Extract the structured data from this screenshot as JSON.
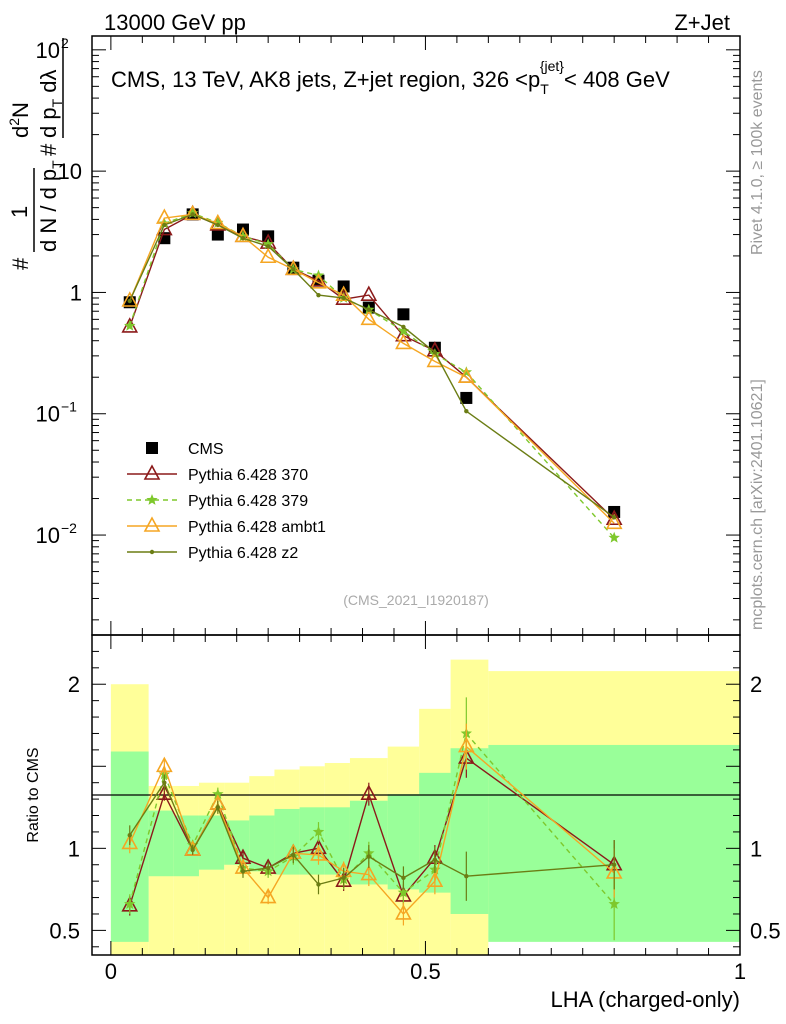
{
  "header": {
    "left": "13000 GeV pp",
    "right": "Z+Jet"
  },
  "side_labels": {
    "rivet": "Rivet 4.1.0, ≥ 100k events",
    "mcplots": "mcplots.cern.ch [arXiv:2401.10621]"
  },
  "chart_data": [
    {
      "type": "scatter",
      "panel": "main",
      "title": "CMS, 13 TeV, AK8 jets, Z+jet region, 326 <p_T^{jet}< 408 GeV",
      "title_parts": {
        "prefix": "CMS, 13 TeV, AK8 jets, Z+jet region, 326 <p",
        "sub": "T",
        "sup": "{jet}",
        "suffix": "< 408 GeV"
      },
      "analysis_id": "(CMS_2021_I1920187)",
      "ylabel": "#frac{1}{d N / d p_T} #frac{d^2N}{d p_T dλ}",
      "ylabel_parts": {
        "hash1": "#",
        "num1": "1",
        "den1": "d N / d p",
        "den1_sub": "T",
        "hash2": "#",
        "num2": "d",
        "num2_sup": "2",
        "num2_tail": "N",
        "den2": "d p",
        "den2_sub": "T",
        "den2_tail": " dλ"
      },
      "yscale": "log",
      "ylim": [
        0.0015,
        130
      ],
      "xlim": [
        -0.03,
        1.0
      ],
      "yticks": [
        {
          "value": 0.01,
          "base": "10",
          "exp": "−2"
        },
        {
          "value": 0.1,
          "base": "10",
          "exp": "−1"
        },
        {
          "value": 1,
          "label": "1"
        },
        {
          "value": 10,
          "label": "10"
        },
        {
          "value": 100,
          "base": "10",
          "exp": "2"
        }
      ],
      "legend_position": "middle-left",
      "series": [
        {
          "name": "CMS",
          "color": "#000000",
          "marker": "square",
          "x": [
            0.03,
            0.085,
            0.13,
            0.17,
            0.21,
            0.25,
            0.29,
            0.33,
            0.37,
            0.41,
            0.465,
            0.515,
            0.565,
            0.8
          ],
          "y": [
            0.83,
            2.8,
            4.4,
            3.0,
            3.3,
            2.9,
            1.6,
            1.25,
            1.12,
            0.75,
            0.66,
            0.35,
            0.135,
            0.0155
          ]
        },
        {
          "name": "Pythia 6.428 370",
          "color": "#8b1a1a",
          "marker": "open-triangle",
          "line": "solid",
          "x": [
            0.03,
            0.085,
            0.13,
            0.17,
            0.21,
            0.25,
            0.29,
            0.33,
            0.37,
            0.41,
            0.465,
            0.515,
            0.565,
            0.8
          ],
          "y": [
            0.52,
            3.3,
            4.4,
            3.6,
            2.9,
            2.55,
            1.55,
            1.25,
            0.88,
            0.95,
            0.44,
            0.33,
            0.2,
            0.0135
          ]
        },
        {
          "name": "Pythia 6.428 379",
          "color": "#7ec82c",
          "marker": "star",
          "line": "dashed",
          "x": [
            0.03,
            0.085,
            0.13,
            0.17,
            0.21,
            0.25,
            0.29,
            0.33,
            0.37,
            0.41,
            0.465,
            0.515,
            0.565,
            0.8
          ],
          "y": [
            0.53,
            3.7,
            4.5,
            3.75,
            2.9,
            2.5,
            1.55,
            1.38,
            0.9,
            0.72,
            0.48,
            0.31,
            0.22,
            0.0095
          ]
        },
        {
          "name": "Pythia 6.428 ambt1",
          "color": "#f5a623",
          "marker": "open-triangle",
          "line": "solid",
          "x": [
            0.03,
            0.085,
            0.13,
            0.17,
            0.21,
            0.25,
            0.29,
            0.33,
            0.37,
            0.41,
            0.465,
            0.515,
            0.565,
            0.8
          ],
          "y": [
            0.85,
            4.1,
            4.4,
            3.7,
            2.9,
            1.95,
            1.55,
            1.2,
            0.95,
            0.6,
            0.38,
            0.27,
            0.2,
            0.0125
          ]
        },
        {
          "name": "Pythia 6.428 z2",
          "color": "#6b7d14",
          "marker": "dot",
          "line": "solid",
          "x": [
            0.03,
            0.085,
            0.13,
            0.17,
            0.21,
            0.25,
            0.29,
            0.33,
            0.37,
            0.41,
            0.465,
            0.515,
            0.565,
            0.8
          ],
          "y": [
            0.85,
            3.6,
            4.4,
            3.6,
            2.8,
            2.4,
            1.55,
            0.95,
            0.9,
            0.72,
            0.52,
            0.32,
            0.105,
            0.014
          ]
        }
      ]
    },
    {
      "type": "scatter",
      "panel": "ratio",
      "ylabel": "Ratio to CMS",
      "xlabel": "LHA (charged-only)",
      "ylim": [
        0.35,
        2.3
      ],
      "xlim": [
        -0.03,
        1.0
      ],
      "xticks": [
        0,
        0.5,
        1
      ],
      "xtick_labels": [
        "0",
        "0.5",
        "1"
      ],
      "yticks": [
        0.5,
        1,
        2
      ],
      "ytick_labels": [
        "0.5",
        "1",
        "2"
      ],
      "bands": {
        "edges": [
          0,
          0.06,
          0.1,
          0.14,
          0.18,
          0.22,
          0.26,
          0.3,
          0.34,
          0.38,
          0.44,
          0.49,
          0.54,
          0.6,
          1.0
        ],
        "inner": {
          "color": "#99ff99",
          "lo": [
            0.43,
            0.83,
            0.83,
            0.87,
            0.9,
            0.86,
            0.84,
            0.84,
            0.84,
            0.78,
            0.75,
            0.73,
            0.6,
            0.43
          ],
          "hi": [
            1.59,
            1.23,
            1.2,
            1.2,
            1.17,
            1.2,
            1.24,
            1.25,
            1.25,
            1.29,
            1.33,
            1.46,
            1.61,
            1.63
          ]
        },
        "outer": {
          "color": "#ffff99",
          "lo": [
            0.35,
            0.35,
            0.35,
            0.35,
            0.35,
            0.35,
            0.35,
            0.35,
            0.35,
            0.35,
            0.35,
            0.35,
            0.35,
            0.45
          ],
          "hi": [
            2.0,
            1.38,
            1.38,
            1.4,
            1.4,
            1.44,
            1.48,
            1.5,
            1.52,
            1.55,
            1.62,
            1.85,
            2.15,
            2.08
          ]
        }
      },
      "series": [
        {
          "name": "Pythia 6.428 370",
          "color": "#8b1a1a",
          "marker": "open-triangle",
          "line": "solid",
          "x": [
            0.03,
            0.085,
            0.13,
            0.17,
            0.21,
            0.25,
            0.29,
            0.33,
            0.37,
            0.41,
            0.465,
            0.515,
            0.565,
            0.8
          ],
          "y": [
            0.65,
            1.33,
            0.99,
            1.27,
            0.94,
            0.88,
            0.97,
            1.0,
            0.8,
            1.33,
            0.71,
            0.94,
            1.55,
            0.9
          ],
          "err": [
            0.06,
            0.04,
            0.03,
            0.04,
            0.04,
            0.04,
            0.05,
            0.06,
            0.06,
            0.07,
            0.07,
            0.08,
            0.12,
            0.15
          ]
        },
        {
          "name": "Pythia 6.428 379",
          "color": "#7ec82c",
          "marker": "star",
          "line": "dashed",
          "x": [
            0.03,
            0.085,
            0.13,
            0.17,
            0.21,
            0.25,
            0.29,
            0.33,
            0.37,
            0.41,
            0.465,
            0.515,
            0.565,
            0.8
          ],
          "y": [
            0.66,
            1.45,
            1.02,
            1.33,
            0.88,
            0.86,
            0.95,
            1.1,
            0.81,
            0.97,
            0.73,
            0.87,
            1.7,
            0.66
          ],
          "err": [
            0.06,
            0.05,
            0.03,
            0.04,
            0.04,
            0.04,
            0.05,
            0.06,
            0.06,
            0.07,
            0.07,
            0.08,
            0.22,
            0.22
          ]
        },
        {
          "name": "Pythia 6.428 ambt1",
          "color": "#f5a623",
          "marker": "open-triangle",
          "line": "solid",
          "x": [
            0.03,
            0.085,
            0.13,
            0.17,
            0.21,
            0.25,
            0.29,
            0.33,
            0.37,
            0.41,
            0.465,
            0.515,
            0.565,
            0.8
          ],
          "y": [
            1.03,
            1.5,
            0.99,
            1.27,
            0.88,
            0.7,
            0.97,
            0.96,
            0.86,
            0.84,
            0.6,
            0.8,
            1.62,
            0.85
          ],
          "err": [
            0.06,
            0.05,
            0.03,
            0.04,
            0.04,
            0.04,
            0.05,
            0.06,
            0.06,
            0.07,
            0.07,
            0.08,
            0.14,
            0.15
          ]
        },
        {
          "name": "Pythia 6.428 z2",
          "color": "#6b7d14",
          "marker": "dot",
          "line": "solid",
          "x": [
            0.03,
            0.085,
            0.13,
            0.17,
            0.21,
            0.25,
            0.29,
            0.33,
            0.37,
            0.41,
            0.465,
            0.515,
            0.565,
            0.8
          ],
          "y": [
            1.08,
            1.4,
            0.99,
            1.25,
            0.86,
            0.88,
            0.96,
            0.78,
            0.82,
            0.95,
            0.82,
            0.93,
            0.83,
            0.9
          ],
          "err": [
            0.06,
            0.05,
            0.03,
            0.04,
            0.04,
            0.04,
            0.05,
            0.06,
            0.06,
            0.07,
            0.07,
            0.08,
            0.15,
            0.15
          ]
        }
      ]
    }
  ]
}
